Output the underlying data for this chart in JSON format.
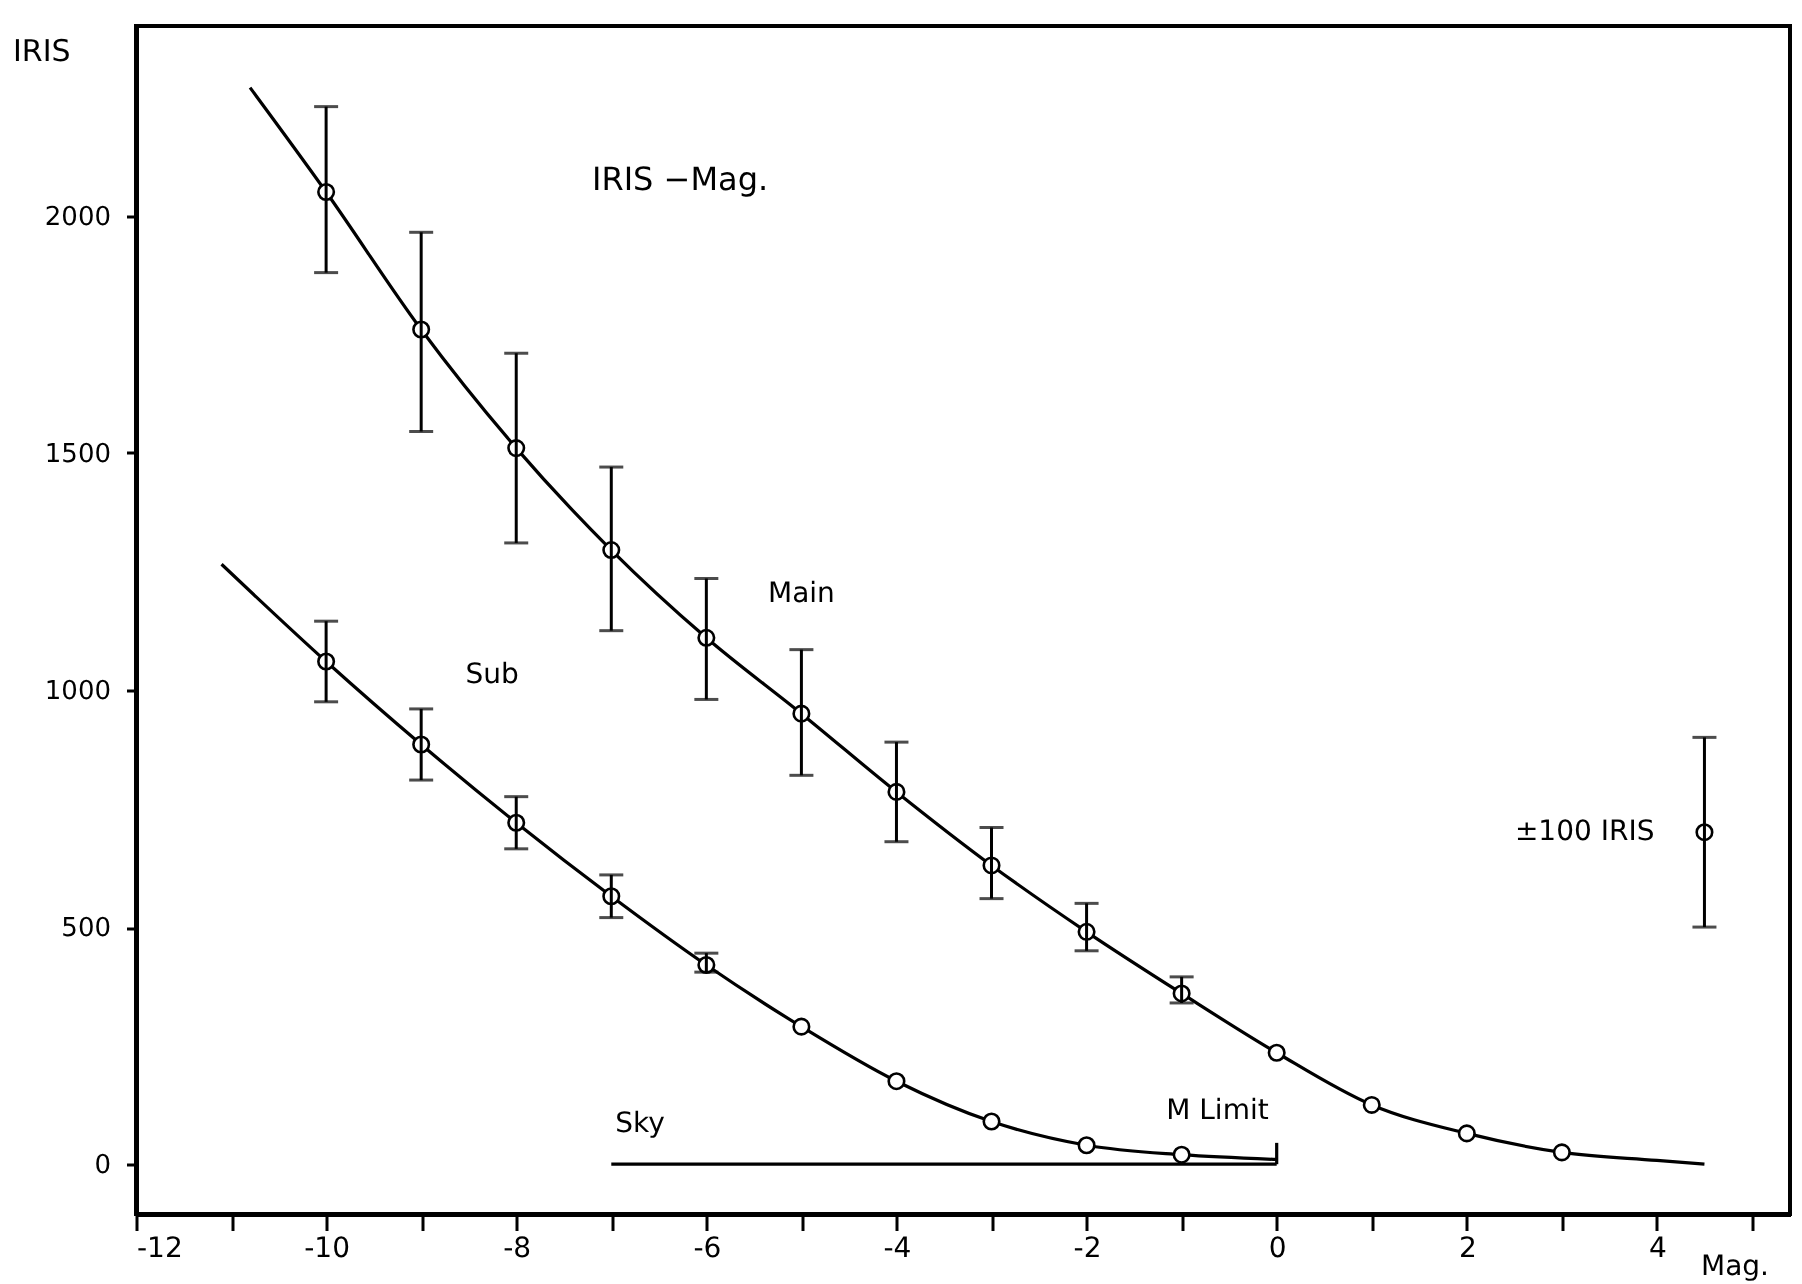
{
  "chart_data": {
    "type": "scatter",
    "title": "IRIS −Mag.",
    "xlabel": "Mag.",
    "ylabel": "IRIS",
    "xlim": [
      -12,
      5.4
    ],
    "ylim": [
      -105,
      2400
    ],
    "xticks": [
      -12,
      {
        "value": -11,
        "label": null
      },
      -10,
      {
        "value": -9,
        "label": null
      },
      -8,
      {
        "value": -7,
        "label": null
      },
      -6,
      {
        "value": -5,
        "label": null
      },
      -4,
      {
        "value": -3,
        "label": null
      },
      -2,
      {
        "value": -1,
        "label": null
      },
      0,
      {
        "value": 1,
        "label": null
      },
      2,
      {
        "value": 3,
        "label": null
      },
      4,
      {
        "value": 5,
        "label": null
      }
    ],
    "yticks": [
      0,
      500,
      1000,
      1500,
      2000
    ],
    "grid": false,
    "marker": "circle",
    "series": [
      {
        "color": "#000000",
        "x": [
          -10,
          -9,
          -8,
          -7,
          -6,
          -5,
          -4,
          -3,
          -2,
          -1,
          0,
          1,
          2,
          3
        ],
        "values": [
          2050,
          1760,
          1510,
          1295,
          1110,
          950,
          785,
          630,
          490,
          360,
          235,
          125,
          65,
          25
        ],
        "errors": [
          [
            1880,
            2230
          ],
          [
            1545,
            1965
          ],
          [
            1310,
            1710
          ],
          [
            1125,
            1470
          ],
          [
            980,
            1235
          ],
          [
            820,
            1085
          ],
          [
            680,
            890
          ],
          [
            560,
            710
          ],
          [
            450,
            550
          ],
          [
            340,
            395
          ],
          null,
          null,
          null,
          null
        ]
      },
      {
        "type": "line",
        "marker": "none",
        "name": "Main",
        "color": "#000000",
        "x": [
          -10.8,
          -10,
          -9,
          -8,
          -7,
          -6,
          -5,
          -4,
          -3,
          -2,
          -1,
          0,
          1,
          2,
          3,
          4,
          4.5
        ],
        "values": [
          2270,
          2050,
          1760,
          1510,
          1295,
          1110,
          950,
          785,
          630,
          490,
          360,
          235,
          125,
          65,
          25,
          8,
          0
        ]
      },
      {
        "color": "#000000",
        "x": [
          -10,
          -9,
          -8,
          -7,
          -6,
          -5,
          -4,
          -3,
          -2,
          -1
        ],
        "values": [
          1060,
          885,
          720,
          565,
          420,
          290,
          175,
          90,
          40,
          20
        ],
        "errors": [
          [
            975,
            1145
          ],
          [
            810,
            960
          ],
          [
            665,
            775
          ],
          [
            520,
            610
          ],
          [
            405,
            445
          ],
          null,
          null,
          null,
          null,
          null
        ]
      },
      {
        "type": "line",
        "marker": "none",
        "name": "Sub",
        "color": "#000000",
        "x": [
          -11.1,
          -10,
          -9,
          -8,
          -7,
          -6,
          -5,
          -4,
          -3,
          -2,
          -1,
          0
        ],
        "values": [
          1265,
          1060,
          885,
          720,
          565,
          420,
          290,
          175,
          90,
          40,
          20,
          10
        ]
      },
      {
        "type": "line",
        "marker": "none",
        "name": "Sky",
        "color": "#000000",
        "x": [
          -7,
          0
        ],
        "values": [
          0,
          0
        ]
      },
      {
        "type": "line",
        "marker": "none",
        "name": "M Limit",
        "color": "#000000",
        "x": [
          0,
          0
        ],
        "values": [
          0,
          45
        ]
      },
      {
        "name": "±100 IRIS",
        "color": "#000000",
        "x": [
          4.5
        ],
        "values": [
          700
        ],
        "errors": [
          [
            500,
            900
          ]
        ]
      }
    ]
  }
}
